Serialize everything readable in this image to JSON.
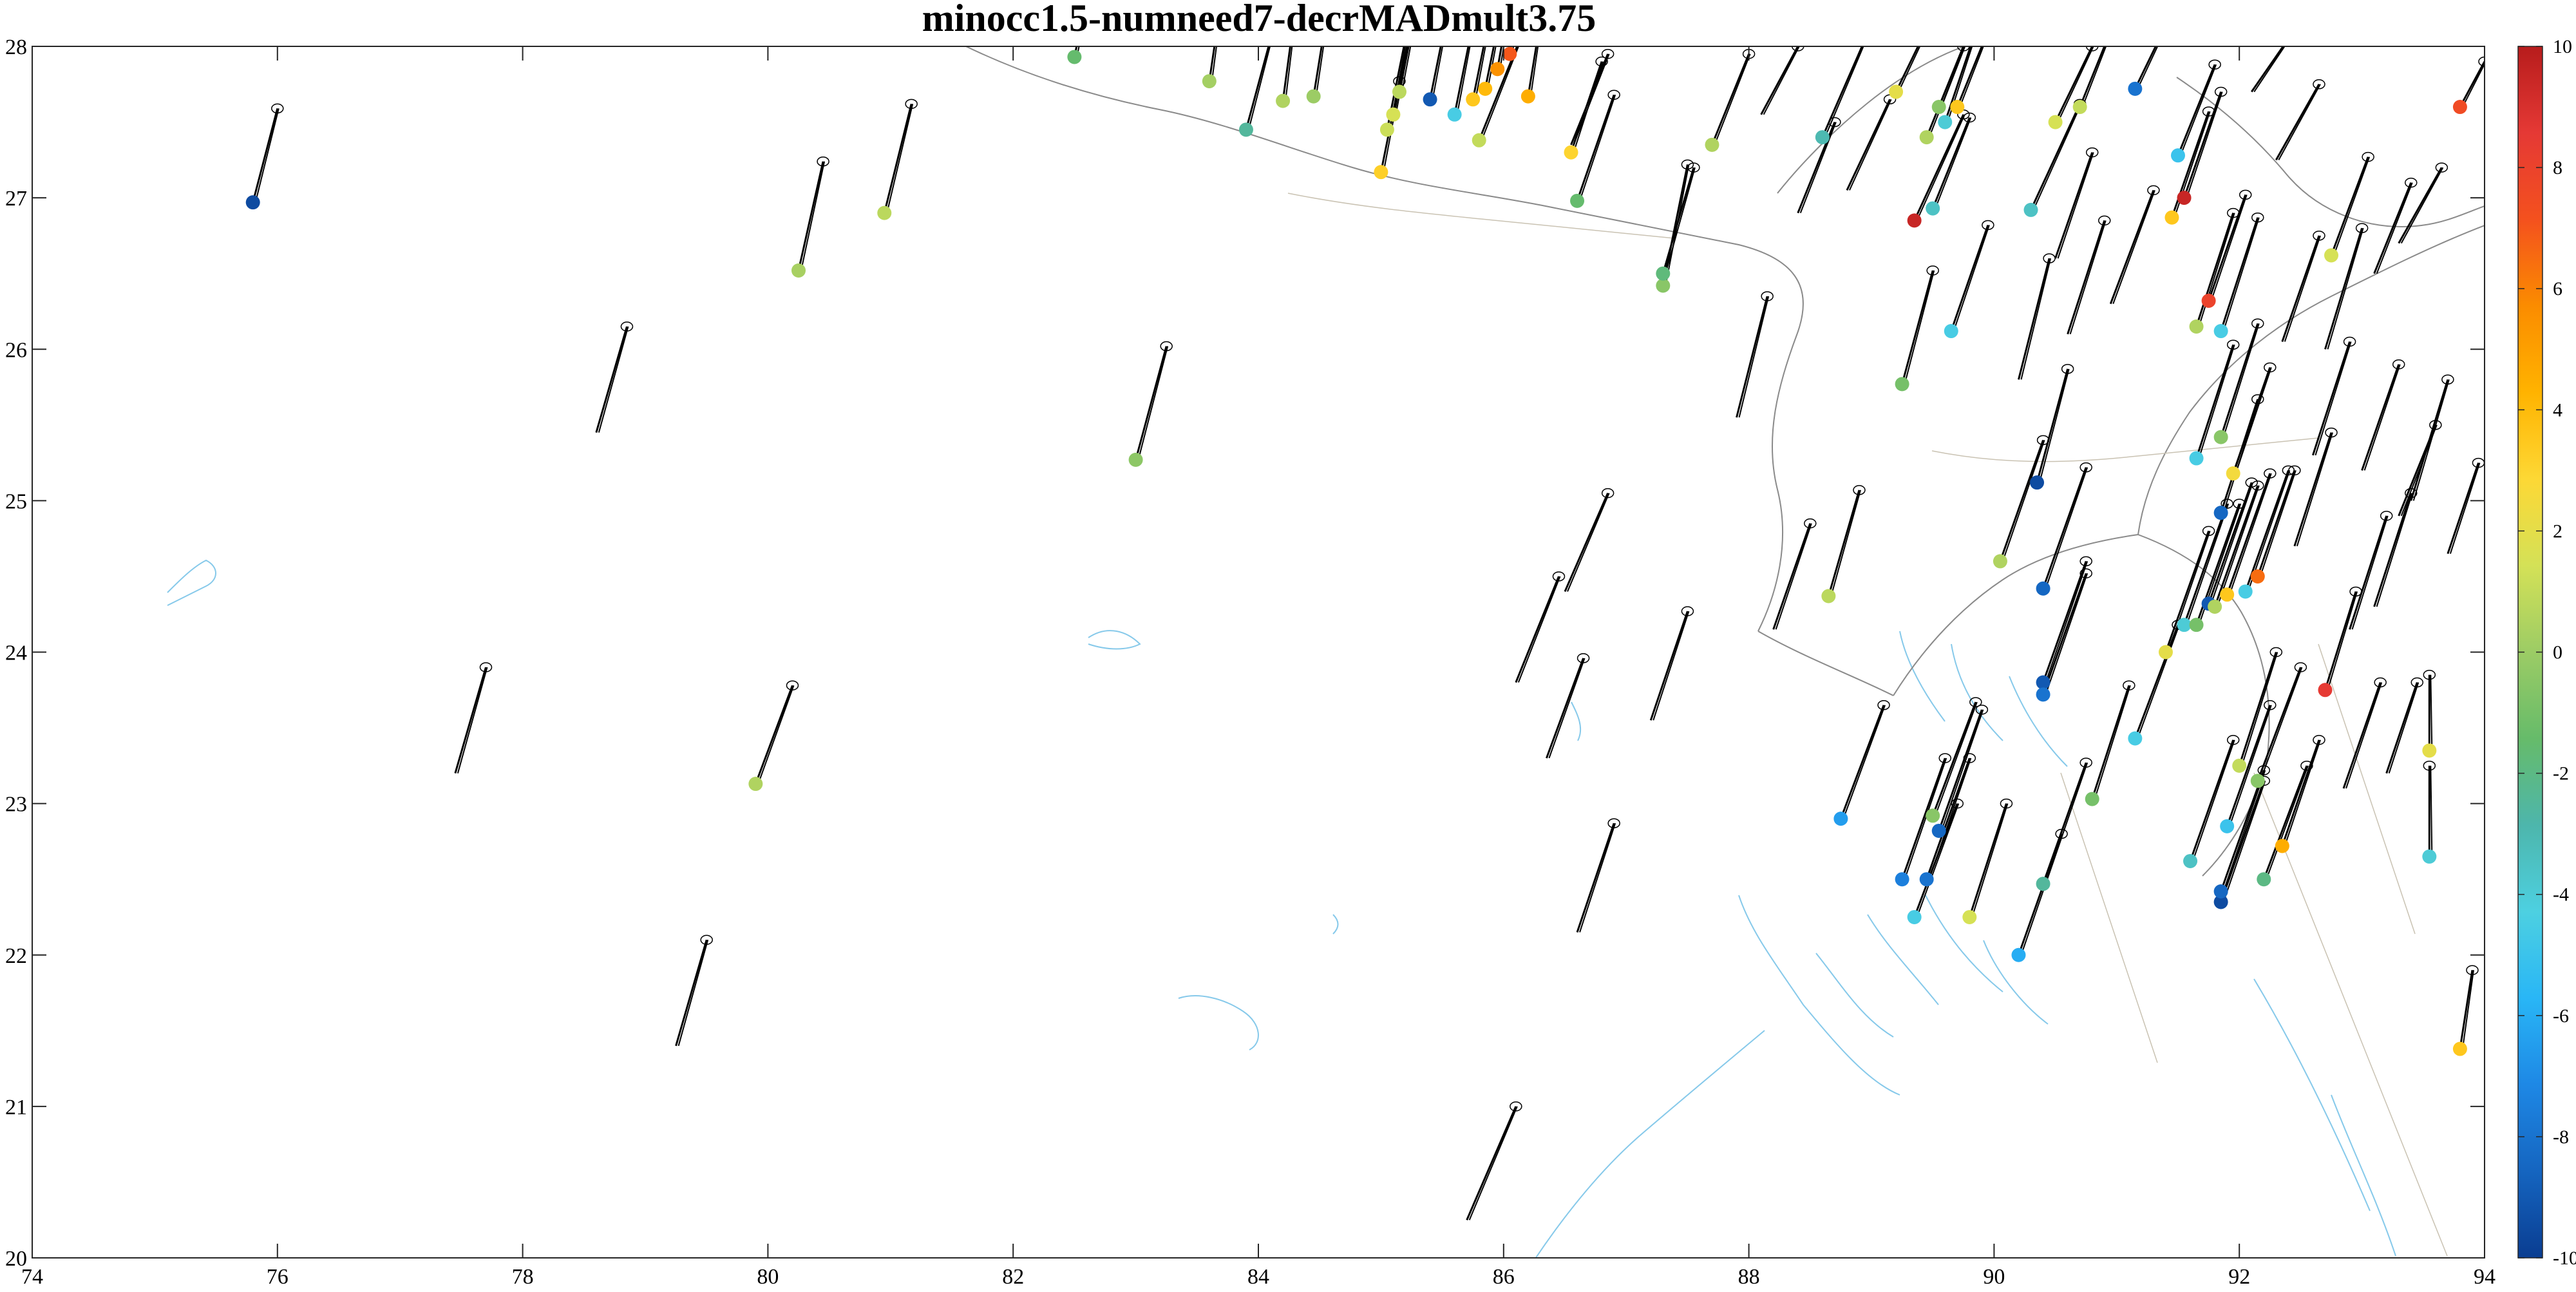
{
  "chart_data": {
    "type": "scatter",
    "title": "minocc1.5-numneed7-decrMADmult3.75",
    "xlabel": "",
    "ylabel": "",
    "xlim": [
      74,
      94
    ],
    "ylim": [
      20,
      28
    ],
    "x_ticks": [
      "74",
      "76",
      "78",
      "80",
      "82",
      "84",
      "86",
      "88",
      "90",
      "92",
      "94"
    ],
    "y_ticks": [
      "20",
      "21",
      "22",
      "23",
      "24",
      "25",
      "26",
      "27",
      "28"
    ],
    "grid": false,
    "colorbar": {
      "position": "right",
      "range": [
        -10,
        10
      ],
      "ticks": [
        "10",
        "8",
        "6",
        "4",
        "2",
        "0",
        "-2",
        "-4",
        "-6",
        "-8",
        "-10"
      ],
      "colormap": [
        "#0a3d91",
        "#1565c0",
        "#1e88e5",
        "#29b6f6",
        "#4dd0e1",
        "#4db6ac",
        "#66bb6a",
        "#9ccc65",
        "#d4e157",
        "#fdd835",
        "#ffb300",
        "#fb8c00",
        "#f4511e",
        "#e53935",
        "#b71c1c"
      ]
    },
    "points": [
      {
        "x": 75.8,
        "y": 26.97,
        "v": -9.5,
        "dx": 0.2,
        "dy": 0.62
      },
      {
        "x": 80.25,
        "y": 26.52,
        "v": 0.3,
        "dx": 0.2,
        "dy": 0.72
      },
      {
        "x": 80.95,
        "y": 26.9,
        "v": 0.8,
        "dx": 0.22,
        "dy": 0.72
      },
      {
        "x": 83.0,
        "y": 25.27,
        "v": -0.4,
        "dx": 0.25,
        "dy": 0.75
      },
      {
        "x": 79.9,
        "y": 23.13,
        "v": 0.5,
        "dx": 0.3,
        "dy": 0.65
      },
      {
        "x": 78.6,
        "y": 25.45,
        "v": null,
        "dx": 0.25,
        "dy": 0.7
      },
      {
        "x": 77.45,
        "y": 23.2,
        "v": null,
        "dx": 0.25,
        "dy": 0.7
      },
      {
        "x": 79.25,
        "y": 21.4,
        "v": null,
        "dx": 0.25,
        "dy": 0.7
      },
      {
        "x": 85.7,
        "y": 20.25,
        "v": null,
        "dx": 0.4,
        "dy": 0.75
      },
      {
        "x": 86.6,
        "y": 22.15,
        "v": null,
        "dx": 0.3,
        "dy": 0.72
      },
      {
        "x": 86.35,
        "y": 23.3,
        "v": null,
        "dx": 0.3,
        "dy": 0.66
      },
      {
        "x": 86.1,
        "y": 23.8,
        "v": null,
        "dx": 0.35,
        "dy": 0.7
      },
      {
        "x": 87.2,
        "y": 23.55,
        "v": null,
        "dx": 0.3,
        "dy": 0.72
      },
      {
        "x": 86.5,
        "y": 24.4,
        "v": null,
        "dx": 0.35,
        "dy": 0.65
      },
      {
        "x": 87.9,
        "y": 25.55,
        "v": null,
        "dx": 0.25,
        "dy": 0.8
      },
      {
        "x": 88.2,
        "y": 24.15,
        "v": null,
        "dx": 0.3,
        "dy": 0.7
      },
      {
        "x": 82.5,
        "y": 27.93,
        "v": -1.5,
        "dx": 0.15,
        "dy": 0.6
      },
      {
        "x": 83.6,
        "y": 27.77,
        "v": 0.2,
        "dx": 0.1,
        "dy": 0.55
      },
      {
        "x": 83.9,
        "y": 27.45,
        "v": -2.5,
        "dx": 0.2,
        "dy": 0.6
      },
      {
        "x": 84.2,
        "y": 27.64,
        "v": 0.5,
        "dx": 0.1,
        "dy": 0.6
      },
      {
        "x": 84.45,
        "y": 27.67,
        "v": 0.0,
        "dx": 0.12,
        "dy": 0.6
      },
      {
        "x": 85.0,
        "y": 27.17,
        "v": 3.2,
        "dx": 0.15,
        "dy": 0.6
      },
      {
        "x": 85.05,
        "y": 27.45,
        "v": 1.2,
        "dx": 0.15,
        "dy": 0.6
      },
      {
        "x": 85.1,
        "y": 27.55,
        "v": 1.5,
        "dx": 0.15,
        "dy": 0.6
      },
      {
        "x": 85.15,
        "y": 27.7,
        "v": 0.8,
        "dx": 0.15,
        "dy": 0.6
      },
      {
        "x": 85.4,
        "y": 27.65,
        "v": -9.0,
        "dx": 0.15,
        "dy": 0.6
      },
      {
        "x": 85.6,
        "y": 27.55,
        "v": -4.5,
        "dx": 0.15,
        "dy": 0.6
      },
      {
        "x": 85.75,
        "y": 27.65,
        "v": 3.5,
        "dx": 0.15,
        "dy": 0.6
      },
      {
        "x": 85.85,
        "y": 27.72,
        "v": 4.0,
        "dx": 0.15,
        "dy": 0.6
      },
      {
        "x": 85.95,
        "y": 27.85,
        "v": 5.5,
        "dx": 0.12,
        "dy": 0.55
      },
      {
        "x": 86.05,
        "y": 27.95,
        "v": 7.0,
        "dx": 0.1,
        "dy": 0.5
      },
      {
        "x": 85.8,
        "y": 27.38,
        "v": 1.0,
        "dx": 0.35,
        "dy": 0.7
      },
      {
        "x": 86.2,
        "y": 27.67,
        "v": 4.5,
        "dx": 0.1,
        "dy": 0.5
      },
      {
        "x": 86.55,
        "y": 27.3,
        "v": 3.0,
        "dx": 0.25,
        "dy": 0.6
      },
      {
        "x": 86.6,
        "y": 26.98,
        "v": -1.5,
        "dx": 0.3,
        "dy": 0.7
      },
      {
        "x": 87.3,
        "y": 26.42,
        "v": -0.5,
        "dx": 0.2,
        "dy": 0.8
      },
      {
        "x": 87.3,
        "y": 26.5,
        "v": -1.8,
        "dx": 0.25,
        "dy": 0.7
      },
      {
        "x": 87.7,
        "y": 27.35,
        "v": 0.5,
        "dx": 0.3,
        "dy": 0.6
      },
      {
        "x": 88.6,
        "y": 27.4,
        "v": -3.0,
        "dx": 0.35,
        "dy": 0.65
      },
      {
        "x": 89.2,
        "y": 27.7,
        "v": 2.0,
        "dx": 0.3,
        "dy": 0.5
      },
      {
        "x": 89.35,
        "y": 26.85,
        "v": 9.5,
        "dx": 0.4,
        "dy": 0.7
      },
      {
        "x": 89.45,
        "y": 27.4,
        "v": 0.5,
        "dx": 0.3,
        "dy": 0.6
      },
      {
        "x": 89.5,
        "y": 26.93,
        "v": -3.5,
        "dx": 0.3,
        "dy": 0.6
      },
      {
        "x": 89.6,
        "y": 27.5,
        "v": -4.0,
        "dx": 0.25,
        "dy": 0.6
      },
      {
        "x": 89.55,
        "y": 27.6,
        "v": -0.5,
        "dx": 0.25,
        "dy": 0.5
      },
      {
        "x": 89.7,
        "y": 27.6,
        "v": 3.5,
        "dx": 0.25,
        "dy": 0.5
      },
      {
        "x": 90.3,
        "y": 26.92,
        "v": -3.5,
        "dx": 0.4,
        "dy": 0.7
      },
      {
        "x": 90.5,
        "y": 27.5,
        "v": 1.5,
        "dx": 0.3,
        "dy": 0.5
      },
      {
        "x": 90.7,
        "y": 27.6,
        "v": 1.0,
        "dx": 0.25,
        "dy": 0.5
      },
      {
        "x": 91.15,
        "y": 27.72,
        "v": -8.0,
        "dx": 0.3,
        "dy": 0.5
      },
      {
        "x": 91.45,
        "y": 26.87,
        "v": 3.5,
        "dx": 0.3,
        "dy": 0.7
      },
      {
        "x": 91.55,
        "y": 27.0,
        "v": 9.5,
        "dx": 0.3,
        "dy": 0.7
      },
      {
        "x": 91.5,
        "y": 27.28,
        "v": -5.0,
        "dx": 0.3,
        "dy": 0.6
      },
      {
        "x": 89.25,
        "y": 25.77,
        "v": -1.0,
        "dx": 0.25,
        "dy": 0.75
      },
      {
        "x": 89.65,
        "y": 26.12,
        "v": -4.5,
        "dx": 0.3,
        "dy": 0.7
      },
      {
        "x": 90.05,
        "y": 24.6,
        "v": 0.5,
        "dx": 0.35,
        "dy": 0.8
      },
      {
        "x": 90.35,
        "y": 25.12,
        "v": -9.5,
        "dx": 0.25,
        "dy": 0.75
      },
      {
        "x": 90.4,
        "y": 24.42,
        "v": -8.5,
        "dx": 0.35,
        "dy": 0.8
      },
      {
        "x": 88.65,
        "y": 24.37,
        "v": 0.8,
        "dx": 0.25,
        "dy": 0.7
      },
      {
        "x": 90.4,
        "y": 23.8,
        "v": -9.0,
        "dx": 0.35,
        "dy": 0.8
      },
      {
        "x": 90.4,
        "y": 23.72,
        "v": -8.0,
        "dx": 0.35,
        "dy": 0.8
      },
      {
        "x": 88.75,
        "y": 22.9,
        "v": -6.5,
        "dx": 0.35,
        "dy": 0.75
      },
      {
        "x": 89.25,
        "y": 22.5,
        "v": -7.5,
        "dx": 0.35,
        "dy": 0.8
      },
      {
        "x": 89.45,
        "y": 22.5,
        "v": -8.0,
        "dx": 0.35,
        "dy": 0.8
      },
      {
        "x": 89.55,
        "y": 22.82,
        "v": -8.5,
        "dx": 0.35,
        "dy": 0.8
      },
      {
        "x": 89.35,
        "y": 22.25,
        "v": -4.5,
        "dx": 0.35,
        "dy": 0.75
      },
      {
        "x": 89.5,
        "y": 22.92,
        "v": -0.5,
        "dx": 0.35,
        "dy": 0.75
      },
      {
        "x": 89.8,
        "y": 22.25,
        "v": 1.5,
        "dx": 0.3,
        "dy": 0.75
      },
      {
        "x": 90.2,
        "y": 22.0,
        "v": -6.0,
        "dx": 0.35,
        "dy": 0.8
      },
      {
        "x": 90.4,
        "y": 22.47,
        "v": -2.5,
        "dx": 0.35,
        "dy": 0.8
      },
      {
        "x": 90.8,
        "y": 23.03,
        "v": -1.0,
        "dx": 0.3,
        "dy": 0.75
      },
      {
        "x": 91.15,
        "y": 23.43,
        "v": -4.5,
        "dx": 0.35,
        "dy": 0.75
      },
      {
        "x": 91.4,
        "y": 24.0,
        "v": 2.0,
        "dx": 0.35,
        "dy": 0.8
      },
      {
        "x": 91.55,
        "y": 24.18,
        "v": -4.0,
        "dx": 0.35,
        "dy": 0.8
      },
      {
        "x": 91.65,
        "y": 24.18,
        "v": -1.0,
        "dx": 0.35,
        "dy": 0.8
      },
      {
        "x": 91.75,
        "y": 24.32,
        "v": -9.0,
        "dx": 0.35,
        "dy": 0.8
      },
      {
        "x": 91.8,
        "y": 24.3,
        "v": 0.5,
        "dx": 0.35,
        "dy": 0.8
      },
      {
        "x": 91.9,
        "y": 24.38,
        "v": 3.5,
        "dx": 0.35,
        "dy": 0.8
      },
      {
        "x": 92.05,
        "y": 24.4,
        "v": -4.5,
        "dx": 0.35,
        "dy": 0.8
      },
      {
        "x": 92.15,
        "y": 24.5,
        "v": 6.5,
        "dx": 0.3,
        "dy": 0.7
      },
      {
        "x": 91.85,
        "y": 24.92,
        "v": -8.5,
        "dx": 0.3,
        "dy": 0.75
      },
      {
        "x": 91.65,
        "y": 25.28,
        "v": -4.5,
        "dx": 0.3,
        "dy": 0.75
      },
      {
        "x": 91.85,
        "y": 25.42,
        "v": -0.5,
        "dx": 0.3,
        "dy": 0.75
      },
      {
        "x": 91.95,
        "y": 25.18,
        "v": 2.5,
        "dx": 0.3,
        "dy": 0.7
      },
      {
        "x": 91.65,
        "y": 26.15,
        "v": 0.5,
        "dx": 0.3,
        "dy": 0.75
      },
      {
        "x": 91.75,
        "y": 26.32,
        "v": 8.0,
        "dx": 0.3,
        "dy": 0.7
      },
      {
        "x": 91.85,
        "y": 26.12,
        "v": -4.5,
        "dx": 0.3,
        "dy": 0.75
      },
      {
        "x": 92.75,
        "y": 26.62,
        "v": 1.5,
        "dx": 0.3,
        "dy": 0.65
      },
      {
        "x": 91.6,
        "y": 22.62,
        "v": -3.5,
        "dx": 0.35,
        "dy": 0.8
      },
      {
        "x": 91.85,
        "y": 22.35,
        "v": -9.5,
        "dx": 0.35,
        "dy": 0.8
      },
      {
        "x": 91.85,
        "y": 22.42,
        "v": -8.5,
        "dx": 0.35,
        "dy": 0.8
      },
      {
        "x": 91.9,
        "y": 22.85,
        "v": -5.0,
        "dx": 0.35,
        "dy": 0.8
      },
      {
        "x": 92.0,
        "y": 23.25,
        "v": 1.0,
        "dx": 0.3,
        "dy": 0.75
      },
      {
        "x": 92.15,
        "y": 23.15,
        "v": -0.5,
        "dx": 0.35,
        "dy": 0.75
      },
      {
        "x": 92.2,
        "y": 22.5,
        "v": -2.0,
        "dx": 0.35,
        "dy": 0.75
      },
      {
        "x": 92.35,
        "y": 22.72,
        "v": 4.5,
        "dx": 0.3,
        "dy": 0.7
      },
      {
        "x": 92.7,
        "y": 23.75,
        "v": 8.5,
        "dx": 0.25,
        "dy": 0.65
      },
      {
        "x": 93.55,
        "y": 23.35,
        "v": 2.0,
        "dx": 0.0,
        "dy": 0.5
      },
      {
        "x": 93.55,
        "y": 22.65,
        "v": -4.0,
        "dx": 0.0,
        "dy": 0.6
      },
      {
        "x": 93.8,
        "y": 21.38,
        "v": 3.5,
        "dx": 0.1,
        "dy": 0.52
      },
      {
        "x": 93.8,
        "y": 27.6,
        "v": 7.5,
        "dx": 0.2,
        "dy": 0.3
      },
      {
        "x": 92.45,
        "y": 24.7,
        "v": null,
        "dx": 0.3,
        "dy": 0.75
      },
      {
        "x": 92.9,
        "y": 24.15,
        "v": null,
        "dx": 0.3,
        "dy": 0.75
      },
      {
        "x": 93.1,
        "y": 24.3,
        "v": null,
        "dx": 0.3,
        "dy": 0.75
      },
      {
        "x": 93.3,
        "y": 24.9,
        "v": null,
        "dx": 0.3,
        "dy": 0.6
      },
      {
        "x": 93.7,
        "y": 24.65,
        "v": null,
        "dx": 0.25,
        "dy": 0.6
      },
      {
        "x": 92.85,
        "y": 23.1,
        "v": null,
        "dx": 0.3,
        "dy": 0.7
      },
      {
        "x": 93.2,
        "y": 23.2,
        "v": null,
        "dx": 0.25,
        "dy": 0.6
      },
      {
        "x": 92.6,
        "y": 25.3,
        "v": null,
        "dx": 0.3,
        "dy": 0.75
      },
      {
        "x": 93.0,
        "y": 25.2,
        "v": null,
        "dx": 0.3,
        "dy": 0.7
      },
      {
        "x": 93.4,
        "y": 25.0,
        "v": null,
        "dx": 0.3,
        "dy": 0.8
      },
      {
        "x": 92.35,
        "y": 26.05,
        "v": null,
        "dx": 0.3,
        "dy": 0.7
      },
      {
        "x": 92.7,
        "y": 26.0,
        "v": null,
        "dx": 0.3,
        "dy": 0.8
      },
      {
        "x": 93.1,
        "y": 26.5,
        "v": null,
        "dx": 0.3,
        "dy": 0.6
      },
      {
        "x": 93.3,
        "y": 26.7,
        "v": null,
        "dx": 0.35,
        "dy": 0.5
      },
      {
        "x": 92.3,
        "y": 27.25,
        "v": null,
        "dx": 0.35,
        "dy": 0.5
      },
      {
        "x": 92.1,
        "y": 27.7,
        "v": null,
        "dx": 0.3,
        "dy": 0.35
      },
      {
        "x": 90.6,
        "y": 26.1,
        "v": null,
        "dx": 0.3,
        "dy": 0.75
      },
      {
        "x": 90.95,
        "y": 26.3,
        "v": null,
        "dx": 0.35,
        "dy": 0.75
      },
      {
        "x": 90.2,
        "y": 25.8,
        "v": null,
        "dx": 0.25,
        "dy": 0.8
      },
      {
        "x": 90.5,
        "y": 26.6,
        "v": null,
        "dx": 0.3,
        "dy": 0.7
      },
      {
        "x": 88.1,
        "y": 27.55,
        "v": null,
        "dx": 0.3,
        "dy": 0.45
      },
      {
        "x": 88.4,
        "y": 26.9,
        "v": null,
        "dx": 0.3,
        "dy": 0.6
      },
      {
        "x": 88.8,
        "y": 27.05,
        "v": null,
        "dx": 0.35,
        "dy": 0.6
      },
      {
        "x": 86.55,
        "y": 27.35,
        "v": null,
        "dx": 0.3,
        "dy": 0.6
      }
    ]
  }
}
